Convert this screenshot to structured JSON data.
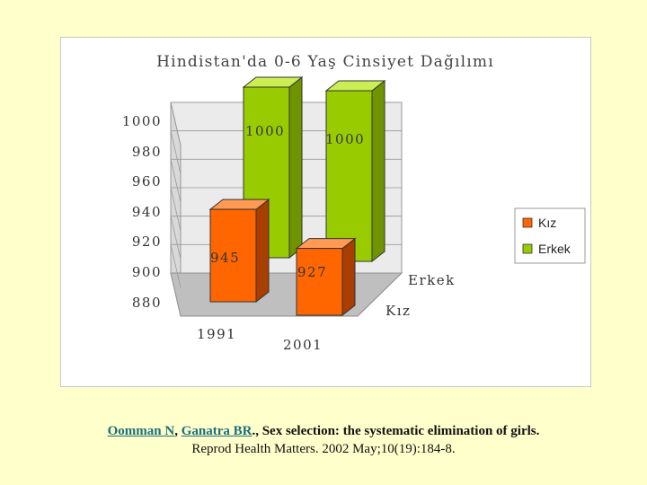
{
  "chart_data": {
    "type": "bar",
    "title": "Hindistan'da 0-6 Yaş Cinsiyet Dağılımı",
    "categories": [
      "1991",
      "2001"
    ],
    "series": [
      {
        "name": "Kız",
        "values": [
          945,
          927
        ],
        "color": "#ff6600"
      },
      {
        "name": "Erkek",
        "values": [
          1000,
          1000
        ],
        "color": "#99cc00"
      }
    ],
    "ylim": [
      880,
      1000
    ],
    "yticks": [
      "1000",
      "980",
      "960",
      "940",
      "920",
      "900",
      "880"
    ],
    "depth_labels": [
      "Erkek",
      "Kız"
    ],
    "legend": {
      "position": "right",
      "entries": [
        "Kız",
        "Erkek"
      ]
    },
    "grid": true,
    "data_labels": {
      "kiz": [
        "945",
        "927"
      ],
      "erkek": [
        "1000",
        "1000"
      ]
    }
  },
  "citation": {
    "author1": "Oomman N",
    "sep1": ", ",
    "author2": "Ganatra BR",
    "rest": "., Sex selection: the systematic elimination of girls.",
    "line2": "Reprod Health Matters. 2002 May;10(19):184-8."
  }
}
